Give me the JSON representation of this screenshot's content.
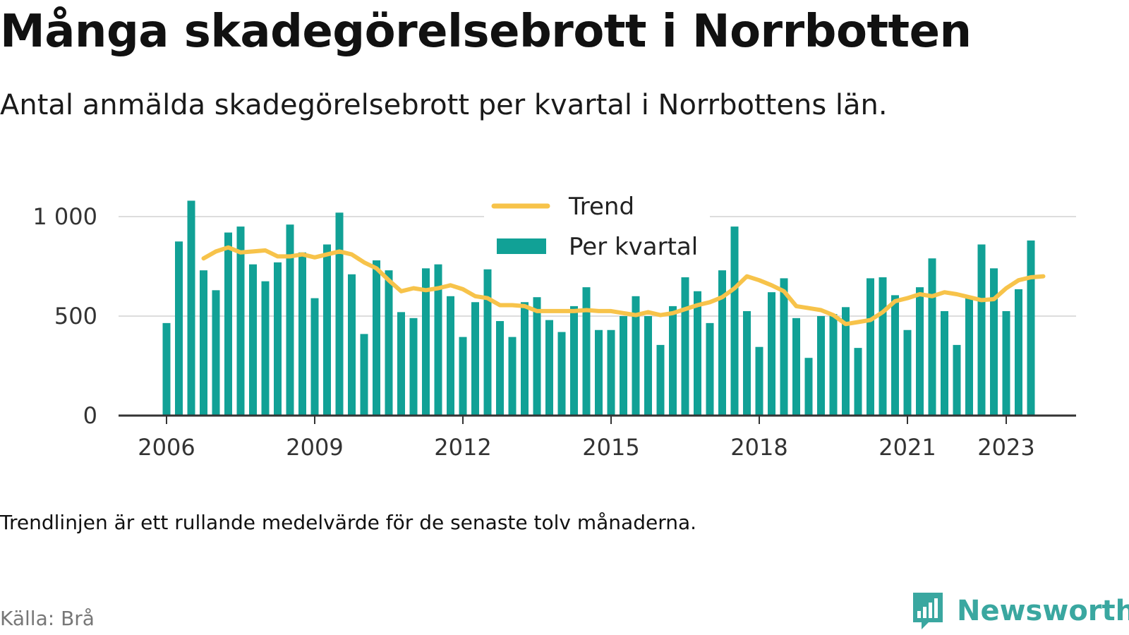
{
  "title": "Många skadegörelsebrott i Norrbotten",
  "subtitle": "Antal anmälda skadegörelsebrott per kvartal i Norrbottens län.",
  "footnote": "Trendlinjen är ett rullande medelvärde för de senaste tolv månaderna.",
  "source": "Källa: Brå",
  "brand": {
    "name": "Newsworthy",
    "icon": "newsworthy-logo-icon"
  },
  "colors": {
    "bar": "#11a196",
    "trend": "#f7c34a",
    "grid": "#dddddd",
    "axis": "#333333",
    "brand": "#3aa7a0"
  },
  "chart_data": {
    "type": "bar",
    "x_start": "2006 Q1",
    "ylim": [
      0,
      1000
    ],
    "yticks": [
      0,
      500,
      1000
    ],
    "ytick_labels": [
      "0",
      "500",
      "1 000"
    ],
    "xticks": [
      {
        "label": "2006",
        "index": 0
      },
      {
        "label": "2009",
        "index": 12
      },
      {
        "label": "2012",
        "index": 24
      },
      {
        "label": "2015",
        "index": 36
      },
      {
        "label": "2018",
        "index": 48
      },
      {
        "label": "2021",
        "index": 60
      },
      {
        "label": "2023",
        "index": 68
      }
    ],
    "legend": {
      "position": "top-center",
      "entries": [
        "Trend",
        "Per kvartal"
      ]
    },
    "grid": true,
    "series": [
      {
        "name": "Per kvartal",
        "type": "bar",
        "values": [
          465,
          875,
          1080,
          730,
          630,
          920,
          950,
          760,
          675,
          770,
          960,
          820,
          590,
          860,
          1020,
          710,
          410,
          780,
          730,
          520,
          490,
          740,
          760,
          600,
          395,
          570,
          735,
          475,
          395,
          570,
          595,
          480,
          420,
          550,
          645,
          430,
          430,
          500,
          600,
          500,
          355,
          550,
          695,
          625,
          465,
          730,
          950,
          525,
          345,
          620,
          690,
          490,
          290,
          500,
          510,
          545,
          340,
          690,
          695,
          605,
          430,
          645,
          790,
          525,
          355,
          590,
          860,
          740,
          525,
          635,
          880
        ]
      },
      {
        "name": "Trend",
        "type": "line",
        "start_index": 3,
        "values": [
          790,
          825,
          845,
          820,
          825,
          830,
          800,
          800,
          810,
          795,
          810,
          825,
          810,
          770,
          740,
          680,
          625,
          640,
          630,
          640,
          655,
          635,
          600,
          590,
          555,
          555,
          550,
          525,
          525,
          525,
          525,
          530,
          525,
          525,
          515,
          505,
          520,
          505,
          515,
          535,
          555,
          570,
          595,
          640,
          700,
          680,
          655,
          625,
          550,
          540,
          530,
          505,
          460,
          470,
          480,
          520,
          575,
          590,
          610,
          600,
          620,
          610,
          595,
          580,
          585,
          640,
          680,
          695,
          700
        ]
      }
    ]
  }
}
